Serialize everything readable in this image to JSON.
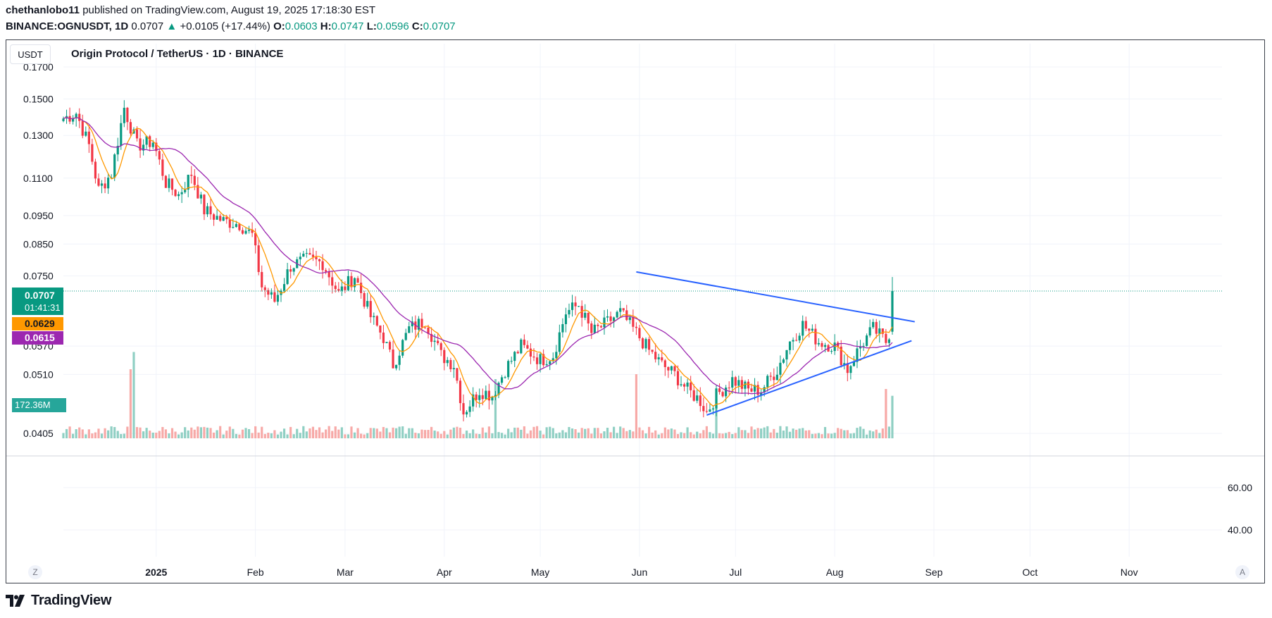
{
  "header": {
    "publisher": "chethanlobo11",
    "published_text": " published on TradingView.com, August 19, 2025 17:18:30 EST",
    "symbol": "BINANCE:OGNUSDT, 1D",
    "last": "0.0707",
    "change_arrow": "▲",
    "change": "+0.0105 (+17.44%)",
    "o_label": "O:",
    "o": "0.0603",
    "h_label": "H:",
    "h": "0.0747",
    "l_label": "L:",
    "l": "0.0596",
    "c_label": "C:",
    "c": "0.0707"
  },
  "chart_header": {
    "currency_button": "USDT",
    "legend": "Origin Protocol / TetherUS · 1D · BINANCE"
  },
  "price_tags": {
    "last_price": "0.0707",
    "countdown": "01:41:31",
    "ma_fast": "0.0629",
    "ma_slow": "0.0615",
    "volume": "172.36M"
  },
  "corner_buttons": {
    "left": "Z",
    "right": "A"
  },
  "footer": {
    "brand": "TradingView"
  },
  "colors": {
    "up": "#089981",
    "down": "#f23645",
    "vol_up": "#8fcfc3",
    "vol_down": "#f7a9a7",
    "ma_fast": "#ff9800",
    "ma_slow": "#9c27b0",
    "trendline": "#2962ff",
    "grid": "#f0f3fa",
    "text": "#131722"
  },
  "chart_data": {
    "type": "candlestick",
    "title": "Origin Protocol / TetherUS · 1D · BINANCE",
    "y_ticks": [
      "0.1700",
      "0.1500",
      "0.1300",
      "0.1100",
      "0.0950",
      "0.0850",
      "0.0750",
      "0.0570",
      "0.0510",
      "0.0405"
    ],
    "y_tick_values": [
      0.17,
      0.15,
      0.13,
      0.11,
      0.095,
      0.085,
      0.075,
      0.057,
      0.051,
      0.0405
    ],
    "y_scale": "log",
    "x_ticks": [
      "2025",
      "Feb",
      "Mar",
      "Apr",
      "May",
      "Jun",
      "Jul",
      "Aug",
      "Sep",
      "Oct",
      "Nov"
    ],
    "x_tick_dates": [
      "2025-01-01",
      "2025-02-01",
      "2025-03-01",
      "2025-04-01",
      "2025-05-01",
      "2025-06-01",
      "2025-07-01",
      "2025-08-01",
      "2025-09-01",
      "2025-10-01",
      "2025-11-01"
    ],
    "x_range": [
      "2024-12-03",
      "2025-11-30"
    ],
    "price_anchors": [
      [
        "2024-12-03",
        0.139
      ],
      [
        "2024-12-07",
        0.142
      ],
      [
        "2024-12-11",
        0.125
      ],
      [
        "2024-12-14",
        0.105
      ],
      [
        "2024-12-18",
        0.112
      ],
      [
        "2024-12-22",
        0.145
      ],
      [
        "2024-12-26",
        0.125
      ],
      [
        "2024-12-31",
        0.127
      ],
      [
        "2025-01-04",
        0.108
      ],
      [
        "2025-01-08",
        0.103
      ],
      [
        "2025-01-12",
        0.112
      ],
      [
        "2025-01-16",
        0.097
      ],
      [
        "2025-01-22",
        0.093
      ],
      [
        "2025-01-27",
        0.092
      ],
      [
        "2025-01-31",
        0.088
      ],
      [
        "2025-02-03",
        0.072
      ],
      [
        "2025-02-07",
        0.068
      ],
      [
        "2025-02-12",
        0.078
      ],
      [
        "2025-02-17",
        0.08
      ],
      [
        "2025-02-22",
        0.079
      ],
      [
        "2025-02-27",
        0.07
      ],
      [
        "2025-03-04",
        0.075
      ],
      [
        "2025-03-09",
        0.064
      ],
      [
        "2025-03-13",
        0.059
      ],
      [
        "2025-03-16",
        0.053
      ],
      [
        "2025-03-21",
        0.061
      ],
      [
        "2025-03-26",
        0.063
      ],
      [
        "2025-03-31",
        0.055
      ],
      [
        "2025-04-04",
        0.053
      ],
      [
        "2025-04-07",
        0.044
      ],
      [
        "2025-04-12",
        0.048
      ],
      [
        "2025-04-16",
        0.047
      ],
      [
        "2025-04-20",
        0.052
      ],
      [
        "2025-04-25",
        0.057
      ],
      [
        "2025-05-01",
        0.054
      ],
      [
        "2025-05-05",
        0.055
      ],
      [
        "2025-05-09",
        0.065
      ],
      [
        "2025-05-13",
        0.067
      ],
      [
        "2025-05-17",
        0.06
      ],
      [
        "2025-05-21",
        0.062
      ],
      [
        "2025-05-26",
        0.065
      ],
      [
        "2025-05-31",
        0.06
      ],
      [
        "2025-06-04",
        0.056
      ],
      [
        "2025-06-08",
        0.053
      ],
      [
        "2025-06-12",
        0.051
      ],
      [
        "2025-06-16",
        0.048
      ],
      [
        "2025-06-20",
        0.046
      ],
      [
        "2025-06-22",
        0.044
      ],
      [
        "2025-06-25",
        0.047
      ],
      [
        "2025-06-30",
        0.05
      ],
      [
        "2025-07-05",
        0.048
      ],
      [
        "2025-07-09",
        0.048
      ],
      [
        "2025-07-14",
        0.052
      ],
      [
        "2025-07-18",
        0.058
      ],
      [
        "2025-07-22",
        0.062
      ],
      [
        "2025-07-27",
        0.058
      ],
      [
        "2025-08-01",
        0.057
      ],
      [
        "2025-08-05",
        0.052
      ],
      [
        "2025-08-09",
        0.057
      ],
      [
        "2025-08-13",
        0.061
      ],
      [
        "2025-08-17",
        0.058
      ],
      [
        "2025-08-18",
        0.06
      ],
      [
        "2025-08-19",
        0.0707
      ]
    ],
    "volume_spikes": [
      {
        "date": "2024-12-24",
        "value": 280
      },
      {
        "date": "2024-12-25",
        "value": 350
      },
      {
        "date": "2025-04-17",
        "value": 240
      },
      {
        "date": "2025-05-31",
        "value": 260
      },
      {
        "date": "2025-06-25",
        "value": 160
      },
      {
        "date": "2025-08-17",
        "value": 200
      },
      {
        "date": "2025-08-19",
        "value": 172.36
      }
    ],
    "trendlines": [
      {
        "name": "resistance",
        "from": [
          "2025-05-31",
          0.0762
        ],
        "to": [
          "2025-08-26",
          0.0627
        ]
      },
      {
        "name": "support",
        "from": [
          "2025-06-22",
          0.0435
        ],
        "to": [
          "2025-08-25",
          0.0582
        ]
      }
    ],
    "moving_averages": [
      {
        "name": "fast",
        "last": 0.0629
      },
      {
        "name": "slow",
        "last": 0.0615
      }
    ],
    "last_price": 0.0707,
    "indicator_pane": {
      "y_ticks": [
        "60.00",
        "40.00"
      ],
      "y_tick_values": [
        60,
        40
      ]
    },
    "grid": true
  }
}
